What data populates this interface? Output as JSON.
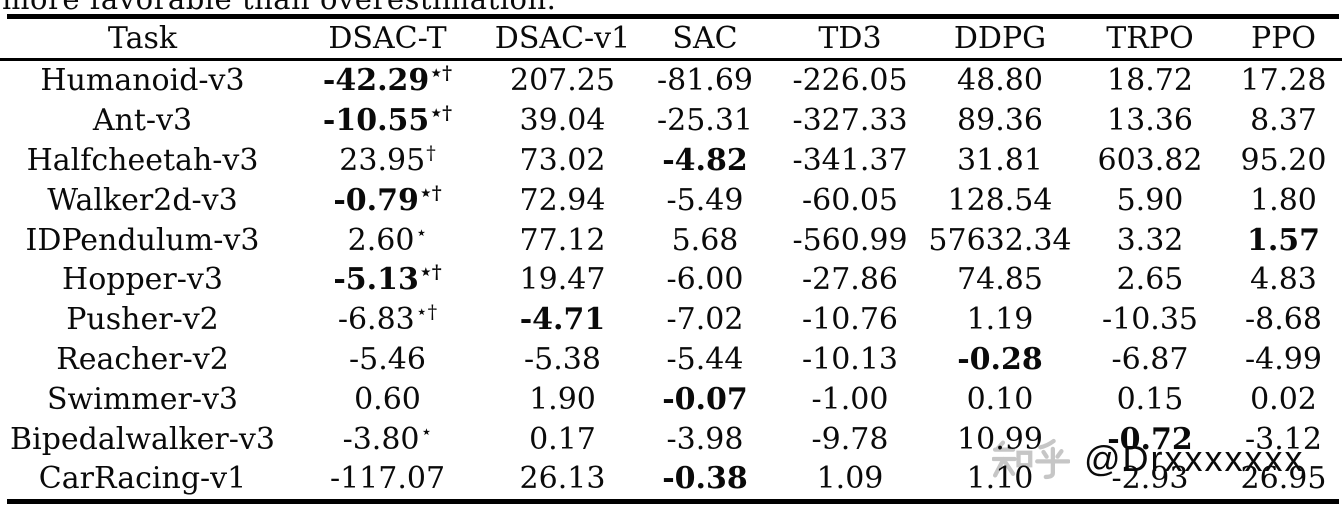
{
  "page": {
    "cutoff_text": "more favorable than overestimation.",
    "background_color": "#ffffff",
    "text_color": "#0a0a0a",
    "rule_color": "#000000"
  },
  "watermark": {
    "logo_text": "知乎",
    "handle": "@Drxxxxxxx",
    "color": "#c6c6c6"
  },
  "table": {
    "columns": [
      "Task",
      "DSAC-T",
      "DSAC-v1",
      "SAC",
      "TD3",
      "DDPG",
      "TRPO",
      "PPO"
    ],
    "rows": [
      {
        "task": "Humanoid-v3",
        "cells": [
          {
            "v": "-42.29",
            "sup": "⋆†",
            "bold": true
          },
          {
            "v": "207.25"
          },
          {
            "v": "-81.69"
          },
          {
            "v": "-226.05"
          },
          {
            "v": "48.80"
          },
          {
            "v": "18.72"
          },
          {
            "v": "17.28"
          }
        ]
      },
      {
        "task": "Ant-v3",
        "cells": [
          {
            "v": "-10.55",
            "sup": "⋆†",
            "bold": true
          },
          {
            "v": "39.04"
          },
          {
            "v": "-25.31"
          },
          {
            "v": "-327.33"
          },
          {
            "v": "89.36"
          },
          {
            "v": "13.36"
          },
          {
            "v": "8.37"
          }
        ]
      },
      {
        "task": "Halfcheetah-v3",
        "cells": [
          {
            "v": "23.95",
            "sup": "†"
          },
          {
            "v": "73.02"
          },
          {
            "v": "-4.82",
            "bold": true
          },
          {
            "v": "-341.37"
          },
          {
            "v": "31.81"
          },
          {
            "v": "603.82"
          },
          {
            "v": "95.20"
          }
        ]
      },
      {
        "task": "Walker2d-v3",
        "cells": [
          {
            "v": "-0.79",
            "sup": "⋆†",
            "bold": true
          },
          {
            "v": "72.94"
          },
          {
            "v": "-5.49"
          },
          {
            "v": "-60.05"
          },
          {
            "v": "128.54"
          },
          {
            "v": "5.90"
          },
          {
            "v": "1.80"
          }
        ]
      },
      {
        "task": "IDPendulum-v3",
        "cells": [
          {
            "v": "2.60",
            "sup": "⋆"
          },
          {
            "v": "77.12"
          },
          {
            "v": "5.68"
          },
          {
            "v": "-560.99"
          },
          {
            "v": "57632.34"
          },
          {
            "v": "3.32"
          },
          {
            "v": "1.57",
            "bold": true
          }
        ]
      },
      {
        "task": "Hopper-v3",
        "cells": [
          {
            "v": "-5.13",
            "sup": "⋆†",
            "bold": true
          },
          {
            "v": "19.47"
          },
          {
            "v": "-6.00"
          },
          {
            "v": "-27.86"
          },
          {
            "v": "74.85"
          },
          {
            "v": "2.65"
          },
          {
            "v": "4.83"
          }
        ]
      },
      {
        "task": "Pusher-v2",
        "cells": [
          {
            "v": "-6.83",
            "sup": "⋆†"
          },
          {
            "v": "-4.71",
            "bold": true
          },
          {
            "v": "-7.02"
          },
          {
            "v": "-10.76"
          },
          {
            "v": "1.19"
          },
          {
            "v": "-10.35"
          },
          {
            "v": "-8.68"
          }
        ]
      },
      {
        "task": "Reacher-v2",
        "cells": [
          {
            "v": "-5.46"
          },
          {
            "v": "-5.38"
          },
          {
            "v": "-5.44"
          },
          {
            "v": "-10.13"
          },
          {
            "v": "-0.28",
            "bold": true
          },
          {
            "v": "-6.87"
          },
          {
            "v": "-4.99"
          }
        ]
      },
      {
        "task": "Swimmer-v3",
        "cells": [
          {
            "v": "0.60"
          },
          {
            "v": "1.90"
          },
          {
            "v": "-0.07",
            "bold": true
          },
          {
            "v": "-1.00"
          },
          {
            "v": "0.10"
          },
          {
            "v": "0.15"
          },
          {
            "v": "0.02"
          }
        ]
      },
      {
        "task": "Bipedalwalker-v3",
        "cells": [
          {
            "v": "-3.80",
            "sup": "⋆"
          },
          {
            "v": "0.17"
          },
          {
            "v": "-3.98"
          },
          {
            "v": "-9.78"
          },
          {
            "v": "10.99"
          },
          {
            "v": "-0.72",
            "bold": true
          },
          {
            "v": "-3.12"
          }
        ]
      },
      {
        "task": "CarRacing-v1",
        "cells": [
          {
            "v": "-117.07"
          },
          {
            "v": "26.13"
          },
          {
            "v": "-0.38",
            "bold": true
          },
          {
            "v": "1.09"
          },
          {
            "v": "1.10"
          },
          {
            "v": "-2.93"
          },
          {
            "v": "26.95"
          }
        ]
      }
    ]
  }
}
